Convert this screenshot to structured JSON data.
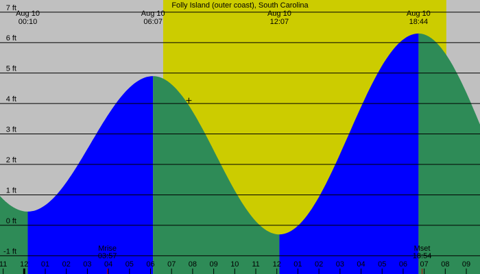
{
  "chart_data": {
    "type": "area",
    "title": "Folly Island (outer coast), South Carolina",
    "y_unit": "ft",
    "ylim": [
      -1.6,
      7.4
    ],
    "y_ticks": [
      -1,
      0,
      1,
      2,
      3,
      4,
      5,
      6,
      7
    ],
    "y_tick_labels": [
      "-1 ft",
      "0 ft",
      "1 ft",
      "2 ft",
      "3 ft",
      "4 ft",
      "5 ft",
      "6 ft",
      "7 ft"
    ],
    "x_range_hours": [
      -1.15,
      21.65
    ],
    "x_tick_labels": [
      "11",
      "12",
      "01",
      "02",
      "03",
      "04",
      "05",
      "06",
      "07",
      "08",
      "09",
      "10",
      "11",
      "12",
      "01",
      "02",
      "03",
      "04",
      "05",
      "06",
      "07",
      "08",
      "09"
    ],
    "x_tick_hours": [
      -1,
      0,
      1,
      2,
      3,
      4,
      5,
      6,
      7,
      8,
      9,
      10,
      11,
      12,
      13,
      14,
      15,
      16,
      17,
      18,
      19,
      20,
      21
    ],
    "daylight": {
      "start_hour": 6.6,
      "end_hour": 20.05
    },
    "extremes": [
      {
        "type": "low",
        "date": "Aug 10",
        "time": "00:10",
        "hour": 0.17,
        "value": 0.45
      },
      {
        "type": "high",
        "date": "Aug 10",
        "time": "06:07",
        "hour": 6.12,
        "value": 4.9
      },
      {
        "type": "low",
        "date": "Aug 10",
        "time": "12:07",
        "hour": 12.12,
        "value": -0.3
      },
      {
        "type": "high",
        "date": "Aug 10",
        "time": "18:44",
        "hour": 18.73,
        "value": 6.3
      }
    ],
    "before_first_high": {
      "hour": -5.9,
      "value": 5.0
    },
    "after_last_low": {
      "hour": 25.0,
      "value": -0.4
    },
    "moon": [
      {
        "label": "Mrise",
        "time": "03:57",
        "hour": 3.95
      },
      {
        "label": "Mset",
        "time": "18:54",
        "hour": 18.9
      }
    ],
    "current_marker": {
      "hour": 7.82,
      "value": 4.1
    },
    "colors": {
      "background": "#c0c0c0",
      "daylight": "#cccc00",
      "rising": "#0000ff",
      "falling": "#2e8b57",
      "grid": "#000000",
      "moon_tick": "#c00000"
    }
  }
}
